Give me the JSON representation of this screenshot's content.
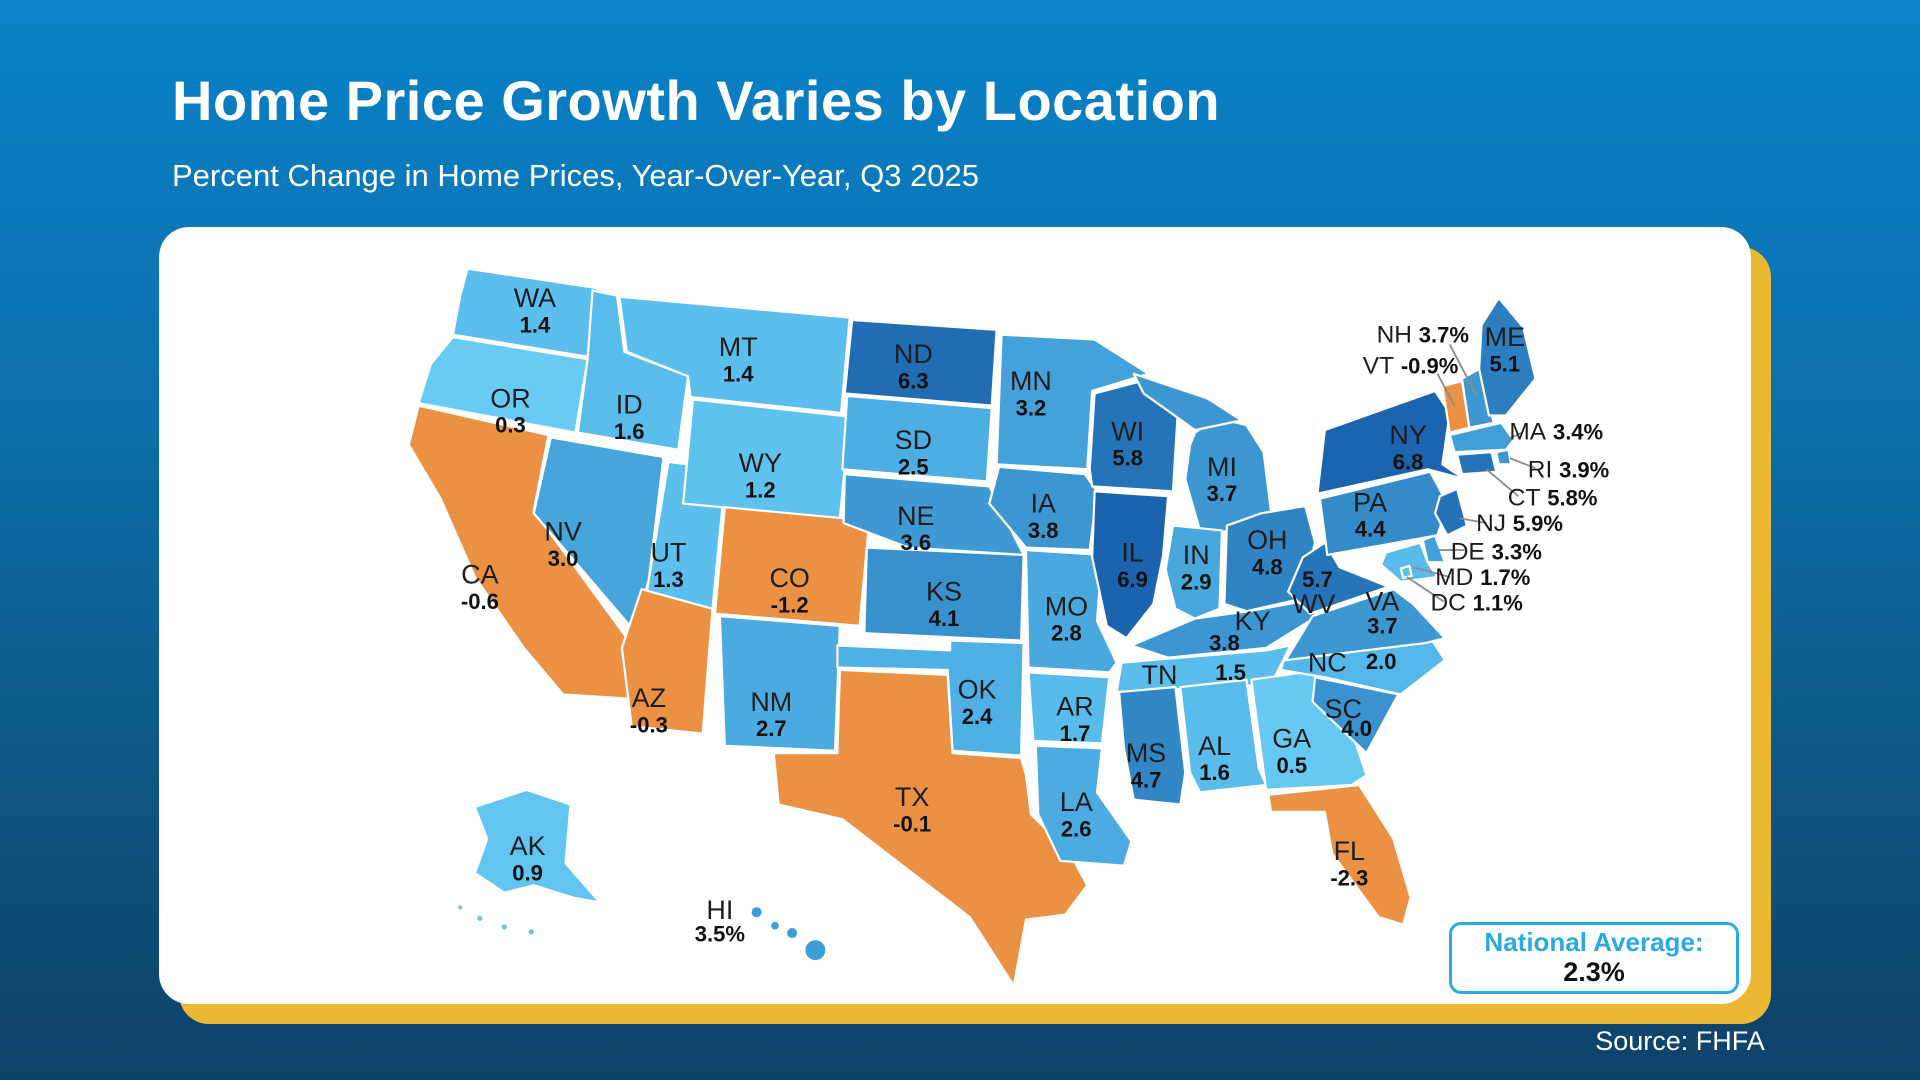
{
  "header": {
    "title": "Home Price Growth Varies by Location",
    "subtitle": "Percent Change in Home Prices, Year-Over-Year, Q3 2025"
  },
  "footer": {
    "source": "Source: FHFA"
  },
  "national_average": {
    "label": "National Average:",
    "value": "2.3%"
  },
  "chart_data": {
    "type": "choropleth",
    "region": "United States (50 states + DC, AK and HI insets)",
    "title": "Home Price Growth Varies by Location",
    "subtitle": "Percent Change in Home Prices, Year-Over-Year, Q3 2025",
    "unit": "percent change in home prices, year-over-year",
    "national_average_pct": 2.3,
    "source": "FHFA",
    "legend_position": "none",
    "color_scale": {
      "negative": "#EA9143",
      "stops": [
        {
          "v": 0,
          "c": "#6DCFF5"
        },
        {
          "v": 2,
          "c": "#54B7E9"
        },
        {
          "v": 3.5,
          "c": "#409CD5"
        },
        {
          "v": 5,
          "c": "#2D80C1"
        },
        {
          "v": 7,
          "c": "#1A61AC"
        }
      ]
    },
    "states": [
      {
        "abbr": "WA",
        "value": 1.4,
        "display": "1.4"
      },
      {
        "abbr": "OR",
        "value": 0.3,
        "display": "0.3"
      },
      {
        "abbr": "CA",
        "value": -0.6,
        "display": "-0.6"
      },
      {
        "abbr": "NV",
        "value": 3.0,
        "display": "3.0"
      },
      {
        "abbr": "ID",
        "value": 1.6,
        "display": "1.6"
      },
      {
        "abbr": "UT",
        "value": 1.3,
        "display": "1.3"
      },
      {
        "abbr": "AZ",
        "value": -0.3,
        "display": "-0.3"
      },
      {
        "abbr": "MT",
        "value": 1.4,
        "display": "1.4"
      },
      {
        "abbr": "WY",
        "value": 1.2,
        "display": "1.2"
      },
      {
        "abbr": "CO",
        "value": -1.2,
        "display": "-1.2"
      },
      {
        "abbr": "NM",
        "value": 2.7,
        "display": "2.7"
      },
      {
        "abbr": "ND",
        "value": 6.3,
        "display": "6.3"
      },
      {
        "abbr": "SD",
        "value": 2.5,
        "display": "2.5"
      },
      {
        "abbr": "NE",
        "value": 3.6,
        "display": "3.6"
      },
      {
        "abbr": "KS",
        "value": 4.1,
        "display": "4.1"
      },
      {
        "abbr": "OK",
        "value": 2.4,
        "display": "2.4"
      },
      {
        "abbr": "TX",
        "value": -0.1,
        "display": "-0.1"
      },
      {
        "abbr": "MN",
        "value": 3.2,
        "display": "3.2"
      },
      {
        "abbr": "IA",
        "value": 3.8,
        "display": "3.8"
      },
      {
        "abbr": "MO",
        "value": 2.8,
        "display": "2.8"
      },
      {
        "abbr": "AR",
        "value": 1.7,
        "display": "1.7"
      },
      {
        "abbr": "LA",
        "value": 2.6,
        "display": "2.6"
      },
      {
        "abbr": "WI",
        "value": 5.8,
        "display": "5.8"
      },
      {
        "abbr": "IL",
        "value": 6.9,
        "display": "6.9"
      },
      {
        "abbr": "MI",
        "value": 3.7,
        "display": "3.7"
      },
      {
        "abbr": "IN",
        "value": 2.9,
        "display": "2.9"
      },
      {
        "abbr": "OH",
        "value": 4.8,
        "display": "4.8"
      },
      {
        "abbr": "KY",
        "value": 3.8,
        "display": "3.8"
      },
      {
        "abbr": "TN",
        "value": 1.5,
        "display": "1.5"
      },
      {
        "abbr": "MS",
        "value": 4.7,
        "display": "4.7"
      },
      {
        "abbr": "AL",
        "value": 1.6,
        "display": "1.6"
      },
      {
        "abbr": "GA",
        "value": 0.5,
        "display": "0.5"
      },
      {
        "abbr": "FL",
        "value": -2.3,
        "display": "-2.3"
      },
      {
        "abbr": "SC",
        "value": 4.0,
        "display": "4.0"
      },
      {
        "abbr": "NC",
        "value": 2.0,
        "display": "2.0"
      },
      {
        "abbr": "VA",
        "value": 3.7,
        "display": "3.7"
      },
      {
        "abbr": "WV",
        "value": 5.7,
        "display": "5.7"
      },
      {
        "abbr": "PA",
        "value": 4.4,
        "display": "4.4"
      },
      {
        "abbr": "NY",
        "value": 6.8,
        "display": "6.8"
      },
      {
        "abbr": "NJ",
        "value": 5.9,
        "display": "5.9%"
      },
      {
        "abbr": "DE",
        "value": 3.3,
        "display": "3.3%"
      },
      {
        "abbr": "MD",
        "value": 1.7,
        "display": "1.7%"
      },
      {
        "abbr": "DC",
        "value": 1.1,
        "display": "1.1%"
      },
      {
        "abbr": "CT",
        "value": 5.8,
        "display": "5.8%"
      },
      {
        "abbr": "RI",
        "value": 3.9,
        "display": "3.9%"
      },
      {
        "abbr": "MA",
        "value": 3.4,
        "display": "3.4%"
      },
      {
        "abbr": "VT",
        "value": -0.9,
        "display": "-0.9%"
      },
      {
        "abbr": "NH",
        "value": 3.7,
        "display": "3.7%"
      },
      {
        "abbr": "ME",
        "value": 5.1,
        "display": "5.1"
      },
      {
        "abbr": "AK",
        "value": 0.9,
        "display": "0.9"
      },
      {
        "abbr": "HI",
        "value": 3.5,
        "display": "3.5%"
      }
    ]
  }
}
